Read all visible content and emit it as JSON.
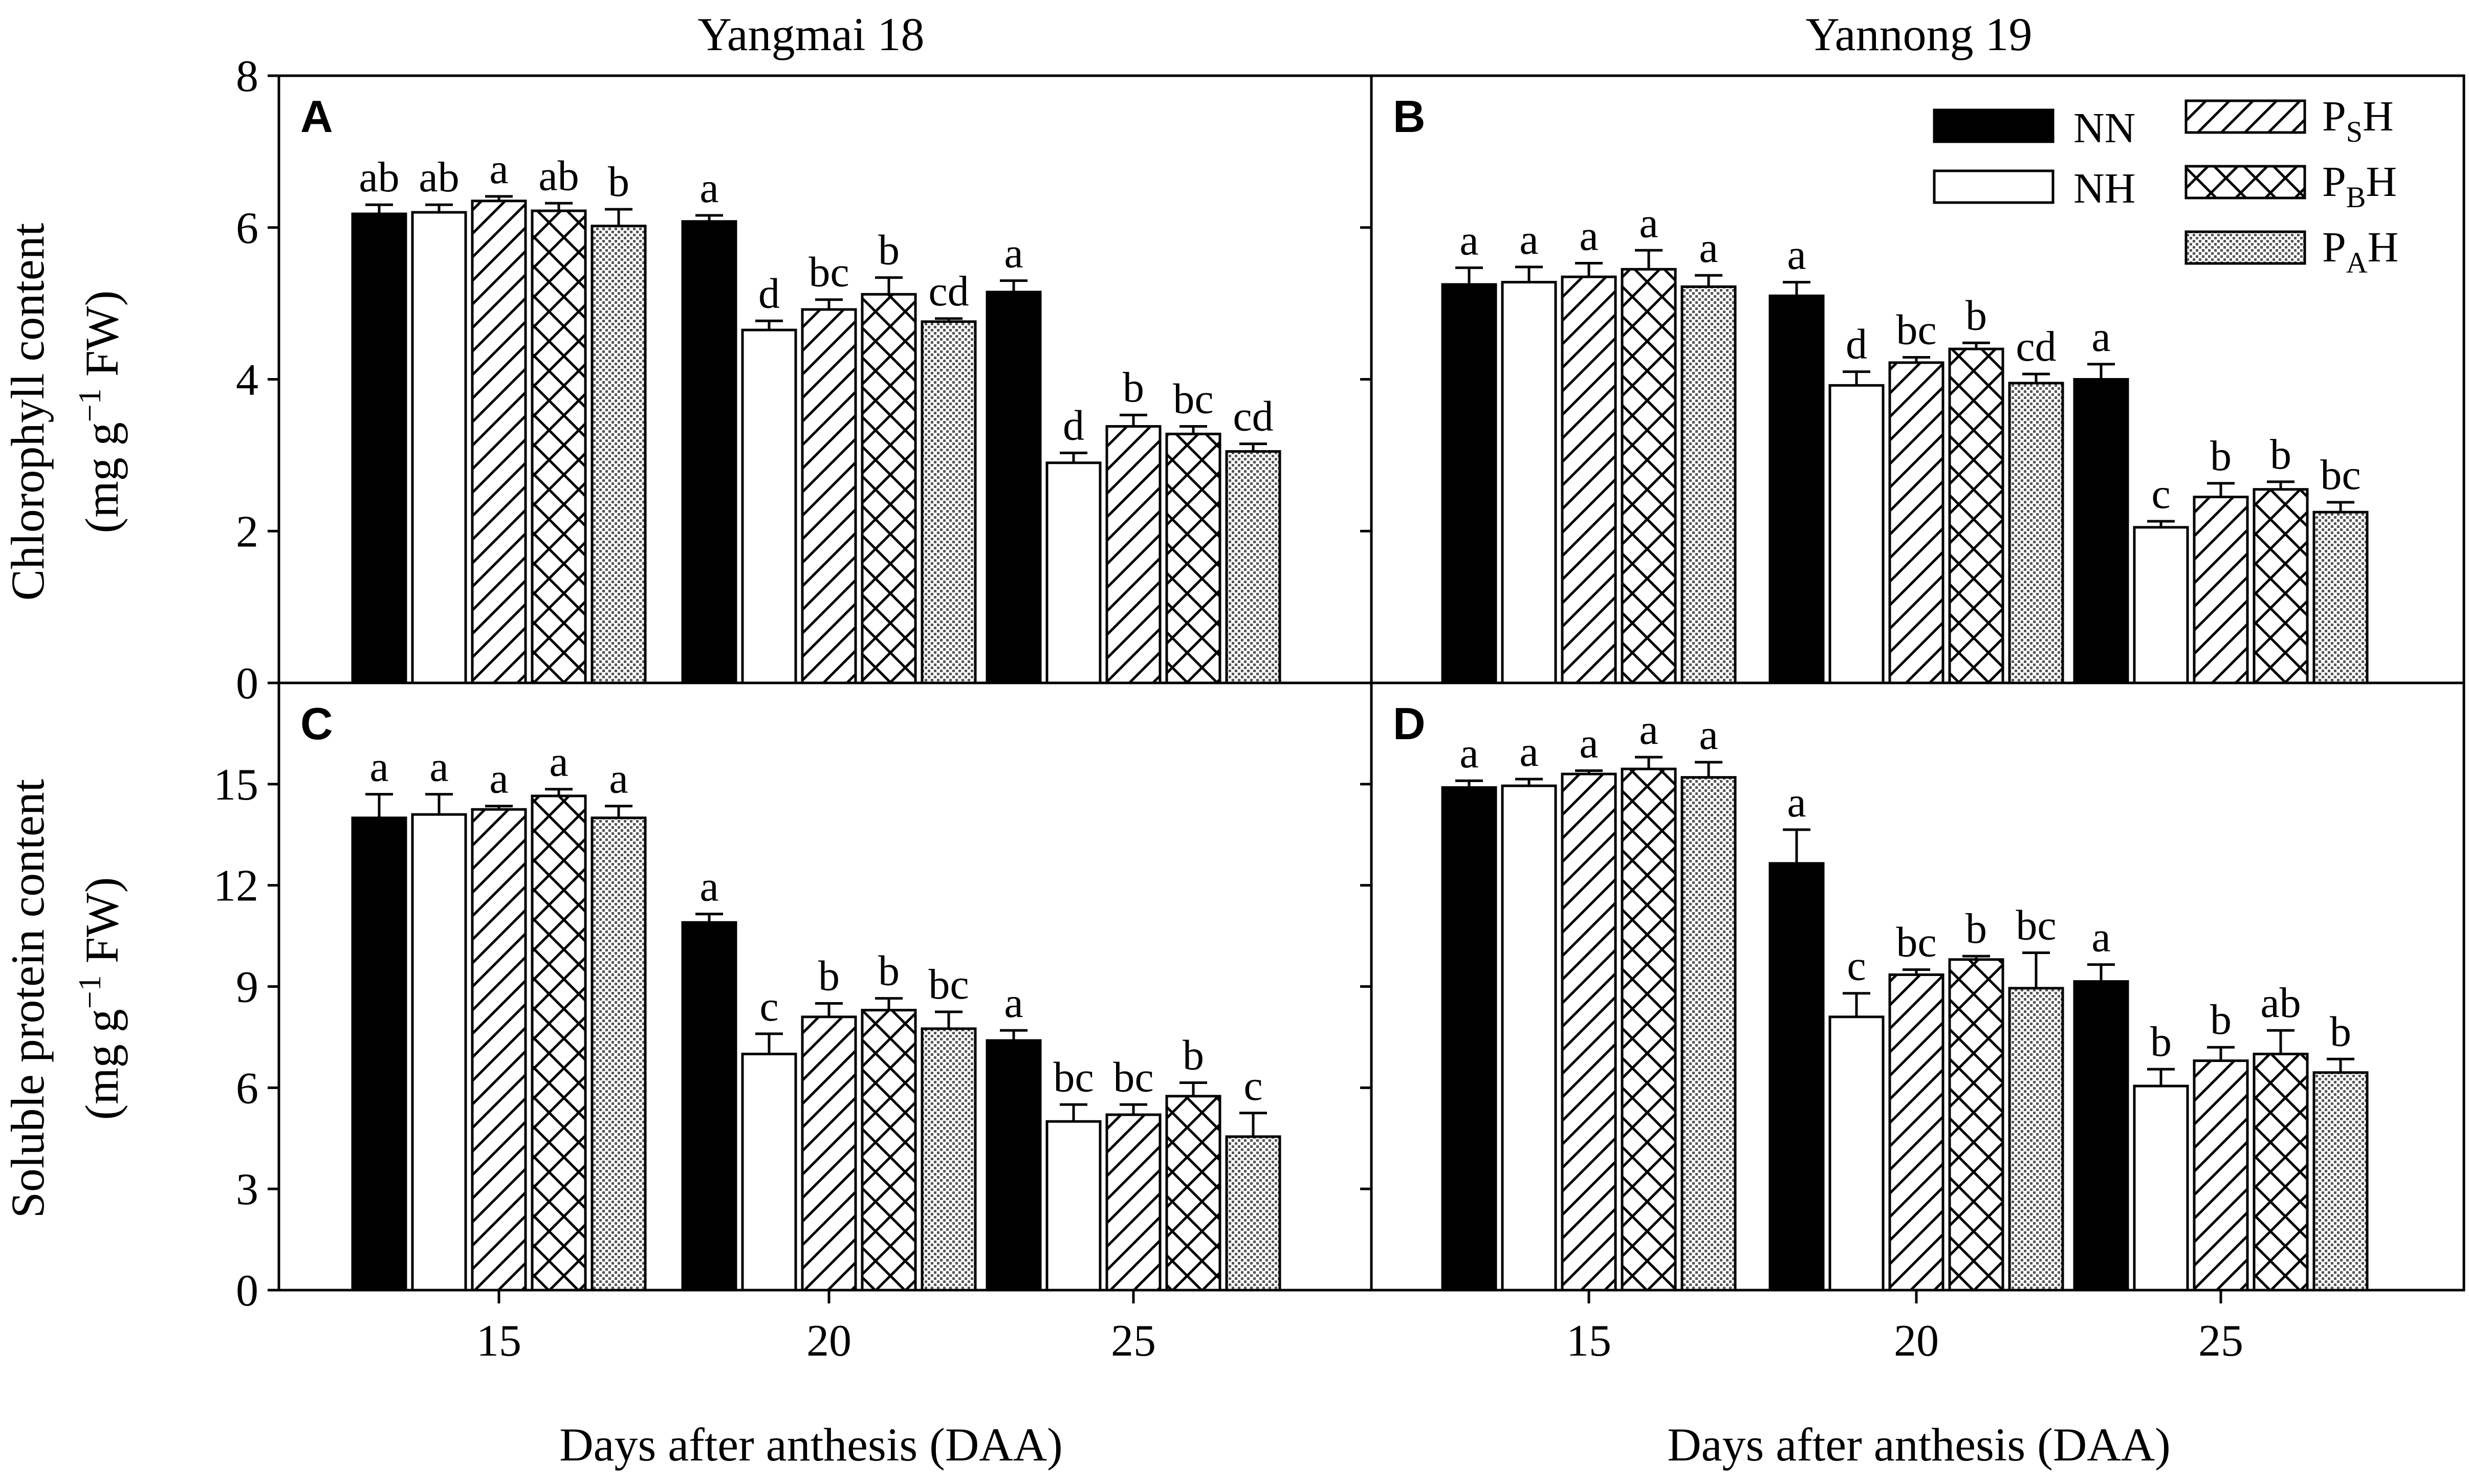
{
  "figure": {
    "col_titles": [
      "Yangmai 18",
      "Yannong 19"
    ],
    "y_titles": [
      {
        "main": "Chlorophyll content",
        "unit_pre": "(mg g",
        "unit_sup": "−1",
        "unit_post": " FW)"
      },
      {
        "main": "Soluble protein content",
        "unit_pre": "(mg g",
        "unit_sup": "−1",
        "unit_post": " FW)"
      }
    ],
    "x_title": "Days after anthesis (DAA)",
    "legend": [
      {
        "name": "NN",
        "sub": "",
        "pattern": "solid"
      },
      {
        "name": "NH",
        "sub": "",
        "pattern": "open"
      },
      {
        "name": "P",
        "sub": "S",
        "suffix": "H",
        "pattern": "diag"
      },
      {
        "name": "P",
        "sub": "B",
        "suffix": "H",
        "pattern": "cross"
      },
      {
        "name": "P",
        "sub": "A",
        "suffix": "H",
        "pattern": "dots"
      }
    ],
    "colors": {
      "bar_fill": "#000000",
      "open_fill": "#ffffff",
      "dots": "#666666"
    }
  },
  "chart_data": [
    {
      "panel": "A",
      "type": "bar",
      "cultivar": "Yangmai 18",
      "variable": "Chlorophyll content",
      "categories": [
        "15",
        "20",
        "25"
      ],
      "ylim": [
        0,
        8
      ],
      "yticks": [
        0,
        2,
        4,
        6,
        8
      ],
      "series": [
        {
          "name": "NN",
          "values": [
            6.18,
            6.08,
            5.15
          ],
          "errors": [
            0.12,
            0.08,
            0.15
          ],
          "letters": [
            "ab",
            "a",
            "a"
          ]
        },
        {
          "name": "NH",
          "values": [
            6.2,
            4.65,
            2.9
          ],
          "errors": [
            0.1,
            0.12,
            0.13
          ],
          "letters": [
            "ab",
            "d",
            "d"
          ]
        },
        {
          "name": "PSH",
          "values": [
            6.35,
            4.92,
            3.38
          ],
          "errors": [
            0.06,
            0.13,
            0.15
          ],
          "letters": [
            "a",
            "bc",
            "b"
          ]
        },
        {
          "name": "PBH",
          "values": [
            6.22,
            5.12,
            3.28
          ],
          "errors": [
            0.1,
            0.22,
            0.1
          ],
          "letters": [
            "ab",
            "b",
            "bc"
          ]
        },
        {
          "name": "PAH",
          "values": [
            6.02,
            4.76,
            3.05
          ],
          "errors": [
            0.22,
            0.04,
            0.1
          ],
          "letters": [
            "b",
            "cd",
            "cd"
          ]
        }
      ]
    },
    {
      "panel": "B",
      "type": "bar",
      "cultivar": "Yannong 19",
      "variable": "Chlorophyll content",
      "categories": [
        "15",
        "20",
        "25"
      ],
      "ylim": [
        0,
        8
      ],
      "yticks": [
        0,
        2,
        4,
        6,
        8
      ],
      "series": [
        {
          "name": "NN",
          "values": [
            5.25,
            5.1,
            4.0
          ],
          "errors": [
            0.22,
            0.18,
            0.2
          ],
          "letters": [
            "a",
            "a",
            "a"
          ]
        },
        {
          "name": "NH",
          "values": [
            5.28,
            3.92,
            2.05
          ],
          "errors": [
            0.2,
            0.18,
            0.08
          ],
          "letters": [
            "a",
            "d",
            "c"
          ]
        },
        {
          "name": "PSH",
          "values": [
            5.35,
            4.22,
            2.45
          ],
          "errors": [
            0.18,
            0.07,
            0.18
          ],
          "letters": [
            "a",
            "bc",
            "b"
          ]
        },
        {
          "name": "PBH",
          "values": [
            5.45,
            4.4,
            2.55
          ],
          "errors": [
            0.25,
            0.08,
            0.1
          ],
          "letters": [
            "a",
            "b",
            "b"
          ]
        },
        {
          "name": "PAH",
          "values": [
            5.22,
            3.95,
            2.25
          ],
          "errors": [
            0.15,
            0.12,
            0.13
          ],
          "letters": [
            "a",
            "cd",
            "bc"
          ]
        }
      ]
    },
    {
      "panel": "C",
      "type": "bar",
      "cultivar": "Yangmai 18",
      "variable": "Soluble protein content",
      "categories": [
        "15",
        "20",
        "25"
      ],
      "ylim": [
        0,
        18
      ],
      "yticks": [
        0,
        3,
        6,
        9,
        12,
        15
      ],
      "series": [
        {
          "name": "NN",
          "values": [
            14.0,
            10.9,
            7.4
          ],
          "errors": [
            0.7,
            0.25,
            0.3
          ],
          "letters": [
            "a",
            "a",
            "a"
          ]
        },
        {
          "name": "NH",
          "values": [
            14.1,
            7.0,
            5.0
          ],
          "errors": [
            0.6,
            0.6,
            0.5
          ],
          "letters": [
            "a",
            "c",
            "bc"
          ]
        },
        {
          "name": "PSH",
          "values": [
            14.25,
            8.1,
            5.2
          ],
          "errors": [
            0.1,
            0.4,
            0.3
          ],
          "letters": [
            "a",
            "b",
            "bc"
          ]
        },
        {
          "name": "PBH",
          "values": [
            14.65,
            8.3,
            5.75
          ],
          "errors": [
            0.2,
            0.35,
            0.4
          ],
          "letters": [
            "a",
            "b",
            "b"
          ]
        },
        {
          "name": "PAH",
          "values": [
            14.0,
            7.75,
            4.55
          ],
          "errors": [
            0.35,
            0.5,
            0.7
          ],
          "letters": [
            "a",
            "bc",
            "c"
          ]
        }
      ]
    },
    {
      "panel": "D",
      "type": "bar",
      "cultivar": "Yannong 19",
      "variable": "Soluble protein content",
      "categories": [
        "15",
        "20",
        "25"
      ],
      "ylim": [
        0,
        18
      ],
      "yticks": [
        0,
        3,
        6,
        9,
        12,
        15
      ],
      "series": [
        {
          "name": "NN",
          "values": [
            14.9,
            12.65,
            9.15
          ],
          "errors": [
            0.2,
            1.0,
            0.5
          ],
          "letters": [
            "a",
            "a",
            "a"
          ]
        },
        {
          "name": "NH",
          "values": [
            14.95,
            8.1,
            6.05
          ],
          "errors": [
            0.2,
            0.7,
            0.5
          ],
          "letters": [
            "a",
            "c",
            "b"
          ]
        },
        {
          "name": "PSH",
          "values": [
            15.3,
            9.35,
            6.8
          ],
          "errors": [
            0.1,
            0.15,
            0.4
          ],
          "letters": [
            "a",
            "bc",
            "b"
          ]
        },
        {
          "name": "PBH",
          "values": [
            15.45,
            9.8,
            7.0
          ],
          "errors": [
            0.35,
            0.1,
            0.7
          ],
          "letters": [
            "a",
            "b",
            "ab"
          ]
        },
        {
          "name": "PAH",
          "values": [
            15.2,
            8.95,
            6.45
          ],
          "errors": [
            0.45,
            1.05,
            0.4
          ],
          "letters": [
            "a",
            "bc",
            "b"
          ]
        }
      ]
    }
  ]
}
